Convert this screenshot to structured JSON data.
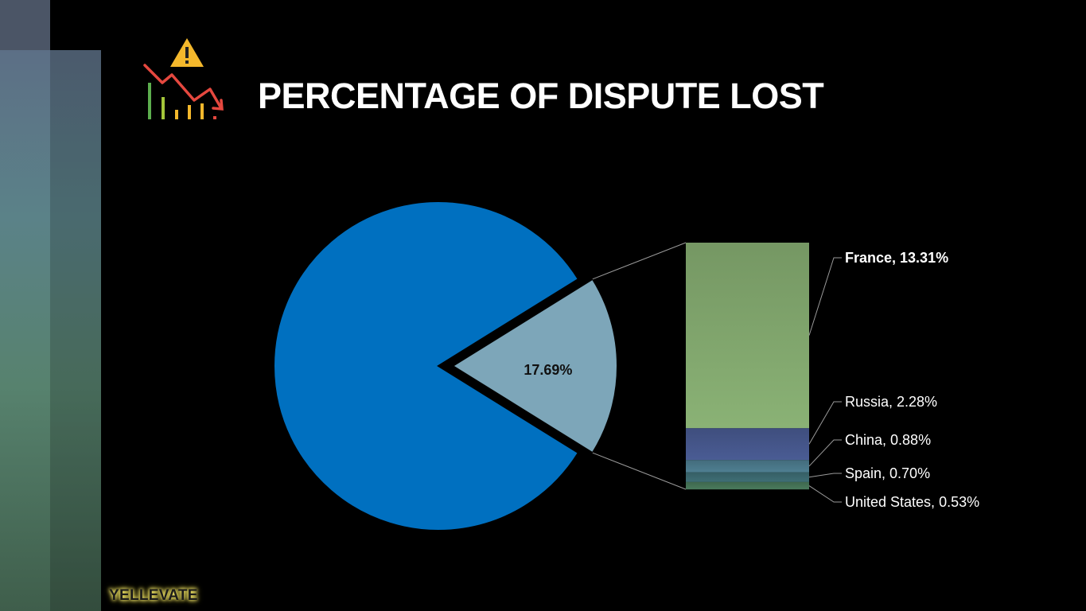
{
  "slide": {
    "title": "PERCENTAGE OF DISPUTE LOST",
    "brand": "YELLEVATE",
    "icon": "declining-chart-warning-icon"
  },
  "chart_data": {
    "type": "pie",
    "title": "PERCENTAGE OF DISPUTE LOST",
    "pie": {
      "slices": [
        {
          "name": "",
          "value": 82.31,
          "color": "#0070c0",
          "label": ""
        },
        {
          "name": "",
          "value": 17.69,
          "color": "#7da6b9",
          "label": "17.69%",
          "exploded": true
        }
      ]
    },
    "breakdown": {
      "type": "stacked-bar",
      "total": 17.69,
      "segments": [
        {
          "name": "France",
          "value": 13.31,
          "label": "France, 13.31%",
          "color": "#8ab275"
        },
        {
          "name": "Russia",
          "value": 2.28,
          "label": "Russia, 2.28%",
          "color": "#4a5c94"
        },
        {
          "name": "China",
          "value": 0.88,
          "label": "China, 0.88%",
          "color": "#4f7f92"
        },
        {
          "name": "Spain",
          "value": 0.7,
          "label": "Spain, 0.70%",
          "color": "#3f6f76"
        },
        {
          "name": "United States",
          "value": 0.53,
          "label": "United States, 0.53%",
          "color": "#4a7a5c"
        }
      ]
    },
    "legend": "none"
  },
  "colors": {
    "background": "#000000",
    "title": "#ffffff",
    "leader_line": "#9a9a9a",
    "brand_glow": "#f5e96a"
  }
}
